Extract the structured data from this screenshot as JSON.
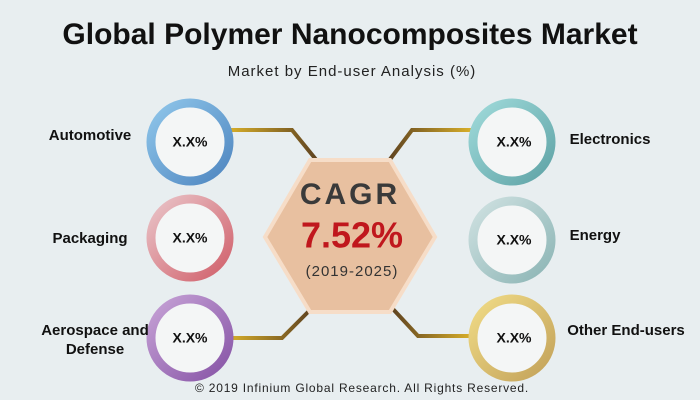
{
  "header": {
    "title": "Global Polymer Nanocomposites Market",
    "subtitle": "Market by End-user Analysis (%)"
  },
  "center": {
    "label": "CAGR",
    "value": "7.52%",
    "period": "(2019-2025)"
  },
  "segments": [
    {
      "label": "Automotive",
      "value": "X.X%"
    },
    {
      "label": "Packaging",
      "value": "X.X%"
    },
    {
      "label": "Aerospace and Defense",
      "value": "X.X%"
    },
    {
      "label": "Electronics",
      "value": "X.X%"
    },
    {
      "label": "Energy",
      "value": "X.X%"
    },
    {
      "label": "Other End-users",
      "value": "X.X%"
    }
  ],
  "footer": "© 2019 Infinium Global Research. All Rights Reserved."
}
